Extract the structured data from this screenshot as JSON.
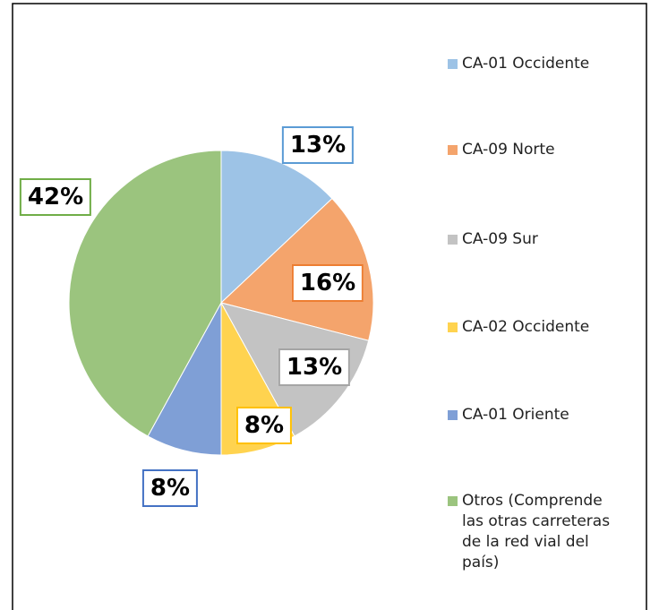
{
  "chart_data": {
    "type": "pie",
    "categories": [
      "CA-01 Occidente",
      "CA-09 Norte",
      "CA-09 Sur",
      "CA-02 Occidente",
      "CA-01 Oriente",
      "Otros (Comprende las otras carreteras de la red vial del país)"
    ],
    "values": [
      13,
      16,
      13,
      8,
      8,
      42
    ],
    "value_labels": [
      "13%",
      "16%",
      "13%",
      "8%",
      "8%",
      "42%"
    ],
    "colors": [
      "#9dc3e6",
      "#f4a46c",
      "#c3c3c3",
      "#ffd34f",
      "#7f9fd6",
      "#9bc47e"
    ],
    "label_border_colors": [
      "#5b9bd5",
      "#ed7d31",
      "#a5a5a5",
      "#ffc000",
      "#4472c4",
      "#70ad47"
    ],
    "legend": "right"
  }
}
